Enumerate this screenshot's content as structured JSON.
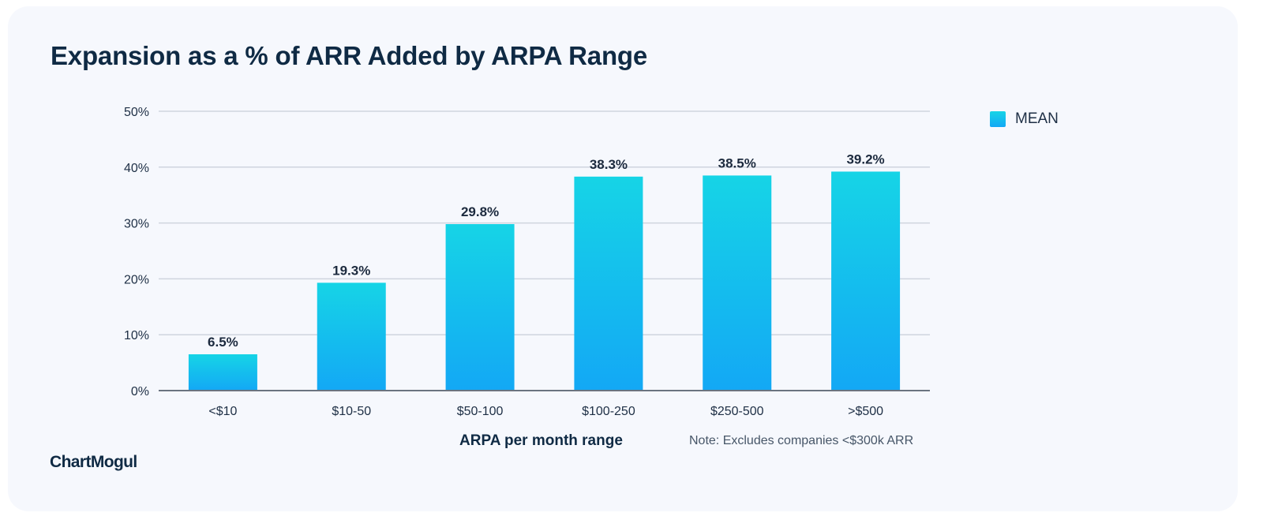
{
  "chart_data": {
    "type": "bar",
    "title": "Expansion as a % of ARR Added by ARPA Range",
    "categories": [
      "<$10",
      "$10-50",
      "$50-100",
      "$100-250",
      "$250-500",
      ">$500"
    ],
    "series": [
      {
        "name": "MEAN",
        "values": [
          6.5,
          19.3,
          29.8,
          38.3,
          38.5,
          39.2
        ],
        "labels": [
          "6.5%",
          "19.3%",
          "29.8%",
          "38.3%",
          "38.5%",
          "39.2%"
        ]
      }
    ],
    "xlabel": "ARPA per month range",
    "ylabel": "",
    "ylim": [
      0,
      50
    ],
    "yticks": [
      "0%",
      "10%",
      "20%",
      "30%",
      "40%",
      "50%"
    ],
    "grid": true,
    "legend_position": "top-right",
    "note": "Note: Excludes companies <$300k ARR",
    "colors": {
      "bar_top": "#16d4e6",
      "bar_bottom": "#13a8f5",
      "grid": "#cfd5de",
      "axis": "#6b7480"
    }
  },
  "brand": "ChartMogul"
}
